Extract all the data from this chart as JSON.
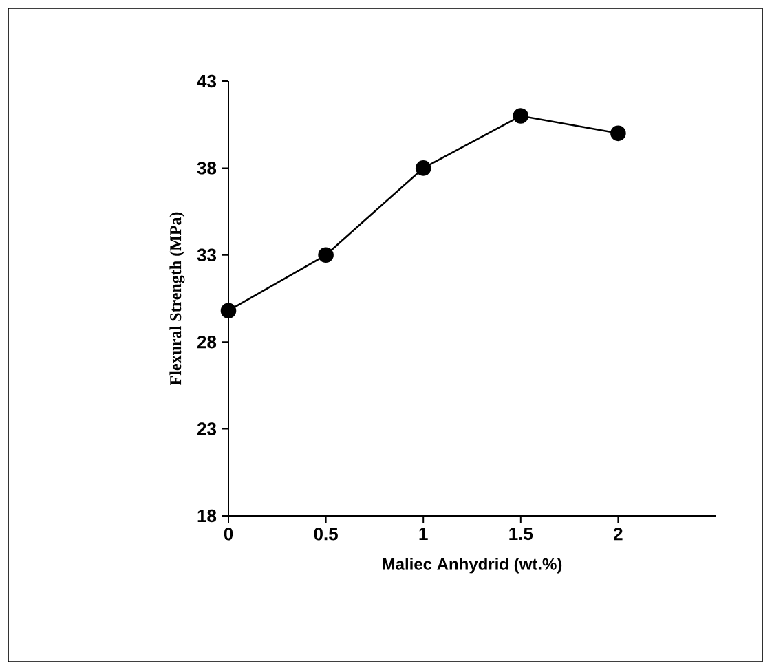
{
  "chart_data": {
    "type": "line",
    "xlabel": "Maliec Anhydrid (wt.%)",
    "ylabel": "Flexural Strength (MPa)",
    "x": [
      0,
      0.5,
      1,
      1.5,
      2
    ],
    "series": [
      {
        "color": "#000000",
        "values": [
          29.8,
          33,
          38,
          41,
          40
        ]
      }
    ],
    "xlim": [
      0,
      2.5
    ],
    "xticks": [
      0,
      0.5,
      1,
      1.5,
      2
    ],
    "ylim": [
      18,
      43
    ],
    "yticks": [
      18,
      23,
      28,
      33,
      38,
      43
    ],
    "grid": false,
    "marker": "circle",
    "line_style": "solid"
  }
}
